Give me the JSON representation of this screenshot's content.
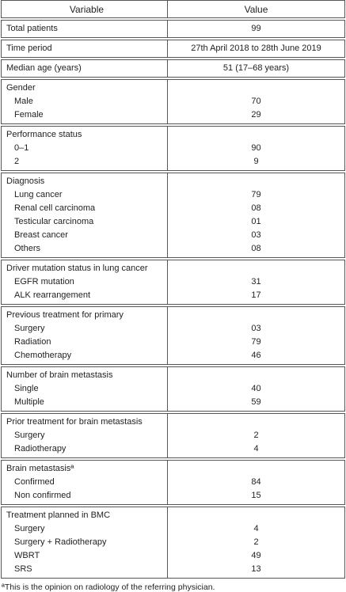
{
  "header": [
    "Variable",
    "Value"
  ],
  "groups": [
    {
      "label": "Total patients",
      "value": "99",
      "items": []
    },
    {
      "label": "Time period",
      "value": "27th April 2018 to 28th June 2019",
      "items": []
    },
    {
      "label": "Median age (years)",
      "value": "51 (17–68 years)",
      "items": []
    },
    {
      "label": "Gender",
      "items": [
        {
          "label": "Male",
          "value": "70"
        },
        {
          "label": "Female",
          "value": "29"
        }
      ]
    },
    {
      "label": "Performance status",
      "items": [
        {
          "label": "0–1",
          "value": "90"
        },
        {
          "label": "2",
          "value": "9"
        }
      ]
    },
    {
      "label": "Diagnosis",
      "items": [
        {
          "label": "Lung cancer",
          "value": "79"
        },
        {
          "label": "Renal cell carcinoma",
          "value": "08"
        },
        {
          "label": "Testicular carcinoma",
          "value": "01"
        },
        {
          "label": "Breast cancer",
          "value": "03"
        },
        {
          "label": "Others",
          "value": "08"
        }
      ]
    },
    {
      "label": "Driver mutation status in lung cancer",
      "items": [
        {
          "label": "EGFR mutation",
          "value": "31"
        },
        {
          "label": "ALK rearrangement",
          "value": "17"
        }
      ]
    },
    {
      "label": "Previous treatment for primary",
      "items": [
        {
          "label": "Surgery",
          "value": "03"
        },
        {
          "label": "Radiation",
          "value": "79"
        },
        {
          "label": "Chemotherapy",
          "value": "46"
        }
      ]
    },
    {
      "label": "Number of brain metastasis",
      "items": [
        {
          "label": "Single",
          "value": "40"
        },
        {
          "label": "Multiple",
          "value": "59"
        }
      ]
    },
    {
      "label": "Prior treatment for brain metastasis",
      "items": [
        {
          "label": "Surgery",
          "value": "2"
        },
        {
          "label": "Radiotherapy",
          "value": "4"
        }
      ]
    },
    {
      "label": "Brain metastasisª",
      "items": [
        {
          "label": "Confirmed",
          "value": "84"
        },
        {
          "label": "Non confirmed",
          "value": "15"
        }
      ]
    },
    {
      "label": "Treatment planned in BMC",
      "items": [
        {
          "label": "Surgery",
          "value": "4"
        },
        {
          "label": "Surgery + Radiotherapy",
          "value": "2"
        },
        {
          "label": "WBRT",
          "value": "49"
        },
        {
          "label": "SRS",
          "value": "13"
        }
      ]
    }
  ],
  "footnote": "ªThis is the opinion on radiology of the referring physician."
}
